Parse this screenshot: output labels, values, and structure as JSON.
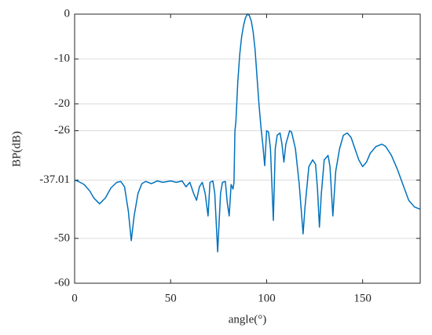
{
  "chart_data": {
    "type": "line",
    "xlabel": "angle(°)",
    "ylabel": "BP(dB)",
    "xlim": [
      0,
      180
    ],
    "ylim": [
      -60,
      0
    ],
    "xticks": [
      0,
      50,
      100,
      150
    ],
    "yticks": [
      -60,
      -50,
      -37.01,
      -26,
      -20,
      -10,
      0
    ],
    "grid": "y",
    "series": [
      {
        "color": "#0072bd",
        "x": [
          0,
          2,
          5,
          8,
          10,
          13,
          16,
          19,
          22,
          24,
          26,
          28,
          29.5,
          31,
          33,
          35,
          37,
          40,
          43,
          46,
          50,
          53,
          56,
          58,
          60,
          62,
          63.5,
          65,
          66.5,
          68,
          69.5,
          70.5,
          72,
          73,
          74.5,
          76,
          77,
          78.5,
          79.5,
          80.5,
          81.5,
          82.5,
          83,
          83.5,
          84,
          85,
          86,
          87,
          88,
          89,
          90,
          91,
          92,
          93,
          94,
          95,
          96,
          97,
          98,
          99,
          100,
          101,
          102,
          103.5,
          104.5,
          105.5,
          107,
          108,
          109,
          110,
          112,
          113,
          115,
          117,
          119,
          120,
          122,
          124,
          125.5,
          126.5,
          127.5,
          128.5,
          130,
          132,
          133,
          134.5,
          136,
          138,
          140,
          142,
          144,
          146,
          148,
          150,
          152,
          154,
          157,
          160,
          162,
          165,
          168,
          171,
          174,
          177,
          180
        ],
        "values": [
          -37,
          -37.3,
          -38,
          -39.5,
          -41,
          -42.3,
          -41,
          -38.7,
          -37.5,
          -37.3,
          -38.5,
          -44,
          -50.5,
          -45,
          -40,
          -37.8,
          -37.3,
          -37.8,
          -37.2,
          -37.5,
          -37.2,
          -37.5,
          -37.2,
          -38.5,
          -37.5,
          -40,
          -41.5,
          -38.5,
          -37.5,
          -40,
          -45,
          -37.5,
          -37.2,
          -40,
          -53,
          -40,
          -37.5,
          -37.3,
          -42,
          -45,
          -38,
          -39,
          -37.5,
          -26,
          -24,
          -15,
          -9,
          -5,
          -2.5,
          -0.8,
          0,
          -0.3,
          -1.5,
          -4,
          -8,
          -14,
          -20,
          -25,
          -29,
          -33.8,
          -26,
          -26.3,
          -30,
          -46,
          -30,
          -27,
          -26.5,
          -29,
          -33,
          -29,
          -26,
          -26.3,
          -30,
          -38,
          -49,
          -43,
          -34,
          -32.5,
          -33.5,
          -39,
          -47.5,
          -40,
          -32.5,
          -31.5,
          -34,
          -45,
          -35,
          -30,
          -27,
          -26.5,
          -27.5,
          -30,
          -32.5,
          -34,
          -33,
          -31,
          -29.5,
          -29,
          -29.5,
          -31.5,
          -34.5,
          -38,
          -41.5,
          -43,
          -43.5
        ]
      }
    ]
  }
}
